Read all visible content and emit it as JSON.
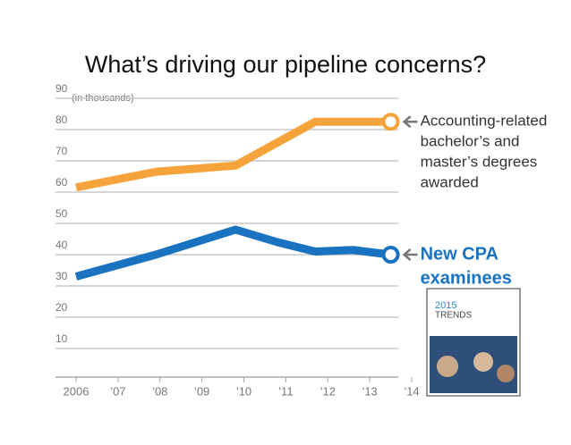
{
  "chart_data": {
    "type": "line",
    "title": "What’s driving our pipeline concerns?",
    "y_unit_note": "(in thousands)",
    "xlim": [
      2006,
      2014
    ],
    "xticks": [
      2006,
      {
        "value": 2007,
        "label": "’07"
      },
      {
        "value": 2008,
        "label": "’08"
      },
      {
        "value": 2009,
        "label": "’09"
      },
      {
        "value": 2010,
        "label": "’10"
      },
      {
        "value": 2011,
        "label": "’11"
      },
      {
        "value": 2012,
        "label": "’12"
      },
      {
        "value": 2013,
        "label": "’13"
      },
      {
        "value": 2014,
        "label": "’14"
      }
    ],
    "ylim": [
      0,
      90
    ],
    "yticks": [
      10,
      20,
      30,
      40,
      50,
      60,
      70,
      80,
      90
    ],
    "grid": true,
    "series": [
      {
        "name": "Accounting-related bachelor’s and master’s degrees awarded",
        "color": "#f5a33a",
        "x": [
          2006,
          2007.9,
          2009.8,
          2011.7,
          2013.5
        ],
        "values": [
          61.5,
          66.5,
          68.5,
          82.5,
          82.5
        ]
      },
      {
        "name": "New CPA examinees",
        "color": "#1a73c0",
        "x": [
          2006,
          2007.9,
          2009.8,
          2010.8,
          2011.7,
          2012.6,
          2013.5
        ],
        "values": [
          33,
          40,
          48,
          44,
          41,
          41.5,
          40
        ]
      }
    ],
    "annotations": [
      {
        "lines": [
          "Accounting-related",
          "bachelor’s and",
          "master’s degrees",
          "awarded"
        ],
        "color": "#333333"
      },
      {
        "lines": [
          "New CPA",
          "examinees"
        ],
        "color": "#1a73c0"
      }
    ],
    "cover": {
      "year": "2015",
      "title": "TRENDS"
    }
  }
}
